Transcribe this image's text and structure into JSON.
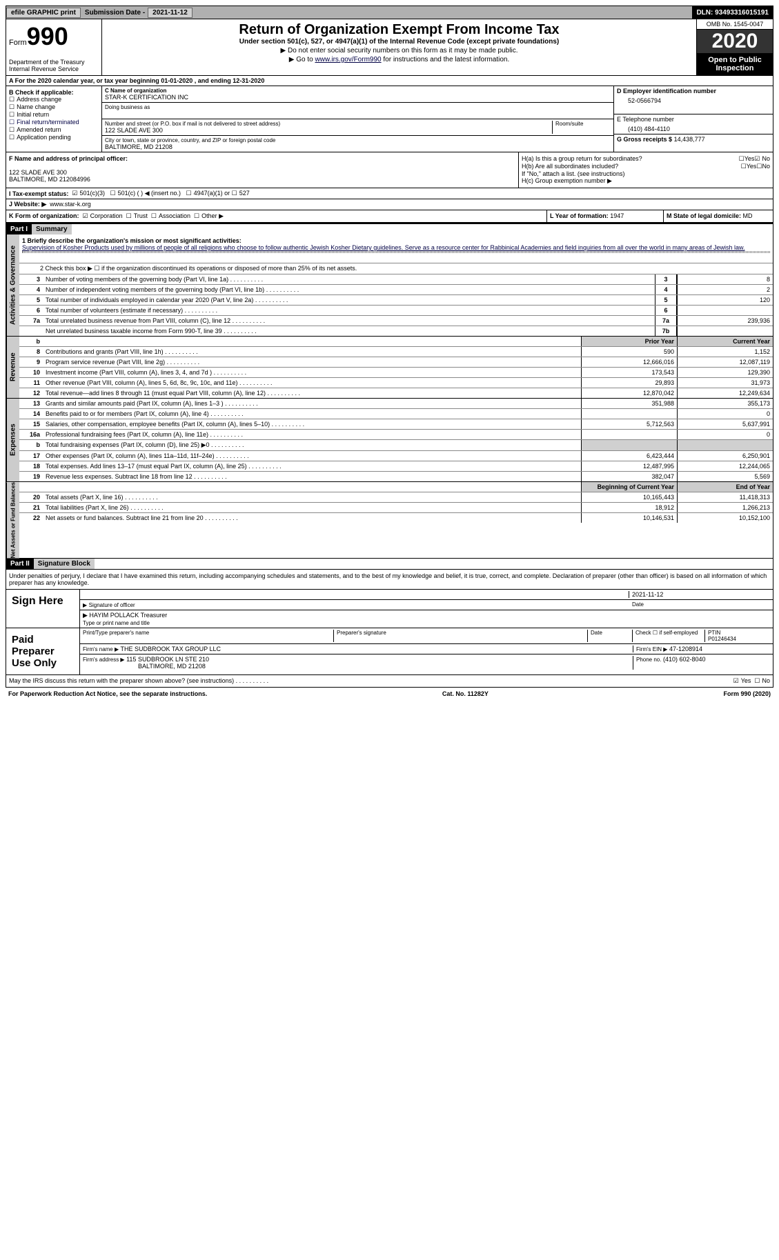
{
  "top": {
    "efile": "efile GRAPHIC print",
    "subdate_label": "Submission Date -",
    "subdate": "2021-11-12",
    "dln_label": "DLN:",
    "dln": "93493316015191"
  },
  "hdr": {
    "form": "Form",
    "num": "990",
    "dept": "Department of the Treasury Internal Revenue Service",
    "title": "Return of Organization Exempt From Income Tax",
    "sub": "Under section 501(c), 527, or 4947(a)(1) of the Internal Revenue Code (except private foundations)",
    "note1": "▶ Do not enter social security numbers on this form as it may be made public.",
    "note2_pre": "▶ Go to ",
    "note2_link": "www.irs.gov/Form990",
    "note2_post": " for instructions and the latest information.",
    "omb": "OMB No. 1545-0047",
    "year": "2020",
    "open": "Open to Public Inspection"
  },
  "rowA": "A For the 2020 calendar year, or tax year beginning 01-01-2020   , and ending 12-31-2020",
  "colB": {
    "hdr": "B Check if applicable:",
    "items": [
      "Address change",
      "Name change",
      "Initial return",
      "Final return/terminated",
      "Amended return",
      "Application pending"
    ]
  },
  "colC": {
    "name_lbl": "C Name of organization",
    "name": "STAR-K CERTIFICATION INC",
    "dba_lbl": "Doing business as",
    "addr_lbl": "Number and street (or P.O. box if mail is not delivered to street address)",
    "room_lbl": "Room/suite",
    "addr": "122 SLADE AVE 300",
    "city_lbl": "City or town, state or province, country, and ZIP or foreign postal code",
    "city": "BALTIMORE, MD  21208"
  },
  "colD": {
    "ein_lbl": "D Employer identification number",
    "ein": "52-0566794",
    "tel_lbl": "E Telephone number",
    "tel": "(410) 484-4110",
    "gross_lbl": "G Gross receipts $",
    "gross": "14,438,777"
  },
  "secF": {
    "lbl": "F Name and address of principal officer:",
    "addr1": "122 SLADE AVE 300",
    "addr2": "BALTIMORE, MD  212084996"
  },
  "secH": {
    "ha": "H(a)  Is this a group return for subordinates?",
    "hb": "H(b)  Are all subordinates included?",
    "hnote": "If \"No,\" attach a list. (see instructions)",
    "hc": "H(c)  Group exemption number ▶"
  },
  "rowI": {
    "lbl": "I   Tax-exempt status:",
    "o1": "501(c)(3)",
    "o2": "501(c) (  ) ◀ (insert no.)",
    "o3": "4947(a)(1) or",
    "o4": "527"
  },
  "rowJ": {
    "lbl": "J   Website: ▶",
    "val": "www.star-k.org"
  },
  "rowK": {
    "lbl": "K Form of organization:",
    "opts": [
      "Corporation",
      "Trust",
      "Association",
      "Other ▶"
    ],
    "l_lbl": "L Year of formation:",
    "l_val": "1947",
    "m_lbl": "M State of legal domicile:",
    "m_val": "MD"
  },
  "part1": {
    "hdr": "Part I",
    "title": "Summary",
    "q1_lbl": "1   Briefly describe the organization's mission or most significant activities:",
    "q1": "Supervision of Kosher Products used by millions of people of all religions who choose to follow authentic Jewish Kosher Dietary guidelines. Serve as a resource center for Rabbinical Academies and field inquiries from all over the world in many areas of Jewish law.",
    "q2": "2   Check this box ▶ ☐  if the organization discontinued its operations or disposed of more than 25% of its net assets.",
    "gov_lbl": "Activities & Governance",
    "rev_lbl": "Revenue",
    "exp_lbl": "Expenses",
    "net_lbl": "Net Assets or Fund Balances",
    "lines": [
      {
        "n": "3",
        "d": "Number of voting members of the governing body (Part VI, line 1a)",
        "c": "3",
        "v": "8"
      },
      {
        "n": "4",
        "d": "Number of independent voting members of the governing body (Part VI, line 1b)",
        "c": "4",
        "v": "2"
      },
      {
        "n": "5",
        "d": "Total number of individuals employed in calendar year 2020 (Part V, line 2a)",
        "c": "5",
        "v": "120"
      },
      {
        "n": "6",
        "d": "Total number of volunteers (estimate if necessary)",
        "c": "6",
        "v": ""
      },
      {
        "n": "7a",
        "d": "Total unrelated business revenue from Part VIII, column (C), line 12",
        "c": "7a",
        "v": "239,936"
      },
      {
        "n": "",
        "d": "Net unrelated business taxable income from Form 990-T, line 39",
        "c": "7b",
        "v": ""
      }
    ],
    "hdr_prior": "Prior Year",
    "hdr_curr": "Current Year",
    "revlines": [
      {
        "n": "8",
        "d": "Contributions and grants (Part VIII, line 1h)",
        "p": "590",
        "c": "1,152"
      },
      {
        "n": "9",
        "d": "Program service revenue (Part VIII, line 2g)",
        "p": "12,666,016",
        "c": "12,087,119"
      },
      {
        "n": "10",
        "d": "Investment income (Part VIII, column (A), lines 3, 4, and 7d )",
        "p": "173,543",
        "c": "129,390"
      },
      {
        "n": "11",
        "d": "Other revenue (Part VIII, column (A), lines 5, 6d, 8c, 9c, 10c, and 11e)",
        "p": "29,893",
        "c": "31,973"
      },
      {
        "n": "12",
        "d": "Total revenue—add lines 8 through 11 (must equal Part VIII, column (A), line 12)",
        "p": "12,870,042",
        "c": "12,249,634"
      }
    ],
    "explines": [
      {
        "n": "13",
        "d": "Grants and similar amounts paid (Part IX, column (A), lines 1–3 )",
        "p": "351,988",
        "c": "355,173"
      },
      {
        "n": "14",
        "d": "Benefits paid to or for members (Part IX, column (A), line 4)",
        "p": "",
        "c": "0"
      },
      {
        "n": "15",
        "d": "Salaries, other compensation, employee benefits (Part IX, column (A), lines 5–10)",
        "p": "5,712,563",
        "c": "5,637,991"
      },
      {
        "n": "16a",
        "d": "Professional fundraising fees (Part IX, column (A), line 11e)",
        "p": "",
        "c": "0"
      },
      {
        "n": "b",
        "d": "Total fundraising expenses (Part IX, column (D), line 25) ▶0",
        "p": "shade",
        "c": "shade"
      },
      {
        "n": "17",
        "d": "Other expenses (Part IX, column (A), lines 11a–11d, 11f–24e)",
        "p": "6,423,444",
        "c": "6,250,901"
      },
      {
        "n": "18",
        "d": "Total expenses. Add lines 13–17 (must equal Part IX, column (A), line 25)",
        "p": "12,487,995",
        "c": "12,244,065"
      },
      {
        "n": "19",
        "d": "Revenue less expenses. Subtract line 18 from line 12",
        "p": "382,047",
        "c": "5,569"
      }
    ],
    "hdr_boy": "Beginning of Current Year",
    "hdr_eoy": "End of Year",
    "netlines": [
      {
        "n": "20",
        "d": "Total assets (Part X, line 16)",
        "p": "10,165,443",
        "c": "11,418,313"
      },
      {
        "n": "21",
        "d": "Total liabilities (Part X, line 26)",
        "p": "18,912",
        "c": "1,266,213"
      },
      {
        "n": "22",
        "d": "Net assets or fund balances. Subtract line 21 from line 20",
        "p": "10,146,531",
        "c": "10,152,100"
      }
    ]
  },
  "part2": {
    "hdr": "Part II",
    "title": "Signature Block",
    "decl": "Under penalties of perjury, I declare that I have examined this return, including accompanying schedules and statements, and to the best of my knowledge and belief, it is true, correct, and complete. Declaration of preparer (other than officer) is based on all information of which preparer has any knowledge.",
    "sign_lbl": "Sign Here",
    "sig_of": "Signature of officer",
    "sig_date": "2021-11-12",
    "sig_date_lbl": "Date",
    "sig_name": "HAYIM POLLACK Treasurer",
    "sig_name_lbl": "Type or print name and title",
    "paid_lbl": "Paid Preparer Use Only",
    "p_name_lbl": "Print/Type preparer's name",
    "p_sig_lbl": "Preparer's signature",
    "p_date_lbl": "Date",
    "p_self": "Check ☐ if self-employed",
    "p_ptin_lbl": "PTIN",
    "p_ptin": "P01246434",
    "firm_lbl": "Firm's name    ▶",
    "firm": "THE SUDBROOK TAX GROUP LLC",
    "firm_ein_lbl": "Firm's EIN ▶",
    "firm_ein": "47-1208914",
    "firm_addr_lbl": "Firm's address ▶",
    "firm_addr": "115 SUDBROOK LN STE 210",
    "firm_city": "BALTIMORE, MD  21208",
    "phone_lbl": "Phone no.",
    "phone": "(410) 602-8040",
    "discuss": "May the IRS discuss this return with the preparer shown above? (see instructions)",
    "yes": "Yes",
    "no": "No"
  },
  "ftr": {
    "pra": "For Paperwork Reduction Act Notice, see the separate instructions.",
    "cat": "Cat. No. 11282Y",
    "form": "Form 990 (2020)"
  }
}
